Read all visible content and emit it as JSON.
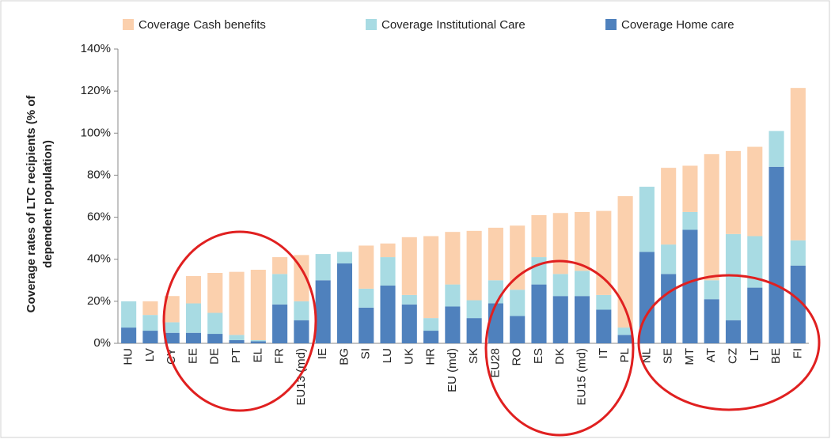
{
  "chart_data": {
    "type": "stacked_bar",
    "ylabel": [
      "Coverage rates of LTC recipients (% of",
      "dependent population)"
    ],
    "categories": [
      "HU",
      "LV",
      "CY",
      "EE",
      "DE",
      "PT",
      "EL",
      "FR",
      "EU13 (md)",
      "IE",
      "BG",
      "SI",
      "LU",
      "UK",
      "HR",
      "EU (md)",
      "SK",
      "EU28",
      "RO",
      "ES",
      "DK",
      "EU15 (md)",
      "IT",
      "PL",
      "NL",
      "SE",
      "MT",
      "AT",
      "CZ",
      "LT",
      "BE",
      "FI"
    ],
    "series": [
      {
        "name": "Coverage Cash benefits",
        "color": "#fbd0ad",
        "values": [
          0,
          6.5,
          12.5,
          13,
          19,
          30,
          33.5,
          8,
          22,
          0,
          0,
          20.5,
          6.5,
          27.5,
          39,
          25,
          33,
          25,
          30.5,
          20,
          29,
          28,
          40,
          62.5,
          0,
          36.5,
          22,
          60,
          39.5,
          42.5,
          0,
          72.5
        ]
      },
      {
        "name": "Coverage Institutional Care",
        "color": "#a8dbe3",
        "values": [
          12.5,
          7.5,
          5,
          14,
          10,
          2.5,
          0.5,
          14.5,
          9,
          12.5,
          5.5,
          9,
          13.5,
          4.5,
          6,
          10.5,
          8.5,
          11,
          12.5,
          13,
          10.5,
          12,
          7,
          3.5,
          31,
          14,
          8.5,
          9,
          41,
          24.5,
          17,
          12
        ]
      },
      {
        "name": "Coverage Home care",
        "color": "#4f81bd",
        "values": [
          7.5,
          6,
          5,
          5,
          4.5,
          1.5,
          1,
          18.5,
          11,
          30,
          38,
          17,
          27.5,
          18.5,
          6,
          17.5,
          12,
          19,
          13,
          28,
          22.5,
          22.5,
          16,
          4,
          43.5,
          33,
          54,
          21,
          11,
          26.5,
          84,
          37
        ]
      }
    ],
    "ylim": [
      0,
      140
    ],
    "yticks": [
      {
        "value": 0,
        "label": "0%"
      },
      {
        "value": 20,
        "label": "20%"
      },
      {
        "value": 40,
        "label": "40%"
      },
      {
        "value": 60,
        "label": "60%"
      },
      {
        "value": 80,
        "label": "80%"
      },
      {
        "value": 100,
        "label": "100%"
      },
      {
        "value": 120,
        "label": "120%"
      },
      {
        "value": 140,
        "label": "140%"
      }
    ],
    "grid": false,
    "legend": "top"
  }
}
